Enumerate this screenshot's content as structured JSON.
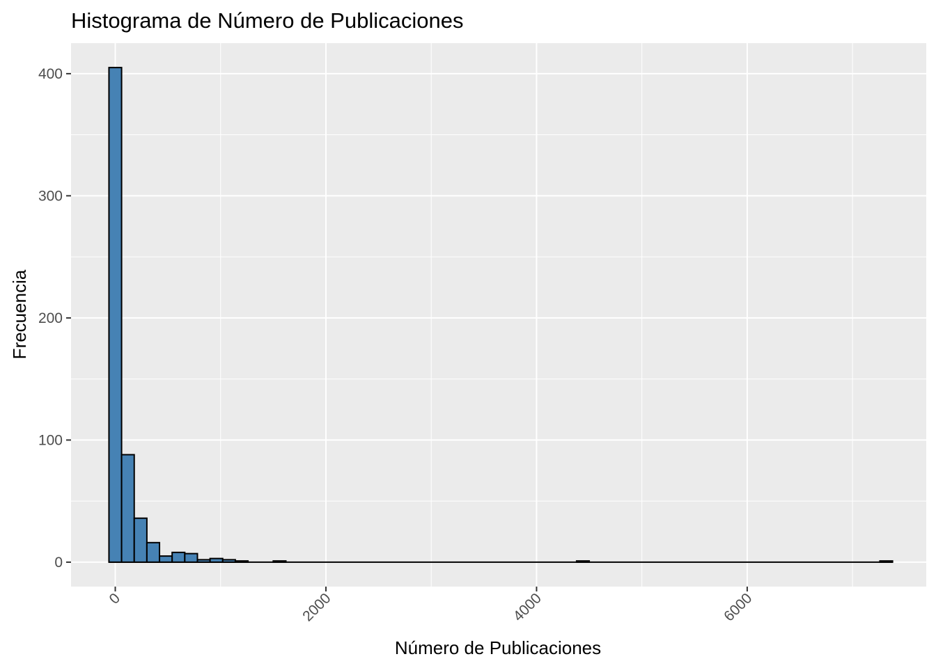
{
  "chart_data": {
    "type": "bar",
    "title": "Histograma de Número de Publicaciones",
    "xlabel": "Número de Publicaciones",
    "ylabel": "Frecuencia",
    "x_ticks": [
      0,
      2000,
      4000,
      6000
    ],
    "y_ticks": [
      0,
      100,
      200,
      300,
      400
    ],
    "xlim": [
      -420,
      7700
    ],
    "ylim": [
      -20,
      425
    ],
    "bin_width": 120,
    "bins": [
      {
        "start": -60,
        "count": 405
      },
      {
        "start": 60,
        "count": 88
      },
      {
        "start": 180,
        "count": 36
      },
      {
        "start": 300,
        "count": 16
      },
      {
        "start": 420,
        "count": 5
      },
      {
        "start": 540,
        "count": 8
      },
      {
        "start": 660,
        "count": 7
      },
      {
        "start": 780,
        "count": 2
      },
      {
        "start": 900,
        "count": 3
      },
      {
        "start": 1020,
        "count": 2
      },
      {
        "start": 1140,
        "count": 1
      },
      {
        "start": 1260,
        "count": 0
      },
      {
        "start": 1380,
        "count": 0
      },
      {
        "start": 1500,
        "count": 1
      },
      {
        "start": 4380,
        "count": 1
      },
      {
        "start": 7260,
        "count": 1
      }
    ],
    "range_end": 7380,
    "grid": true,
    "colors": {
      "bar_fill": "#4682B4",
      "bar_stroke": "#000000",
      "panel_background": "#EBEBEB",
      "grid_line": "#FFFFFF"
    }
  }
}
